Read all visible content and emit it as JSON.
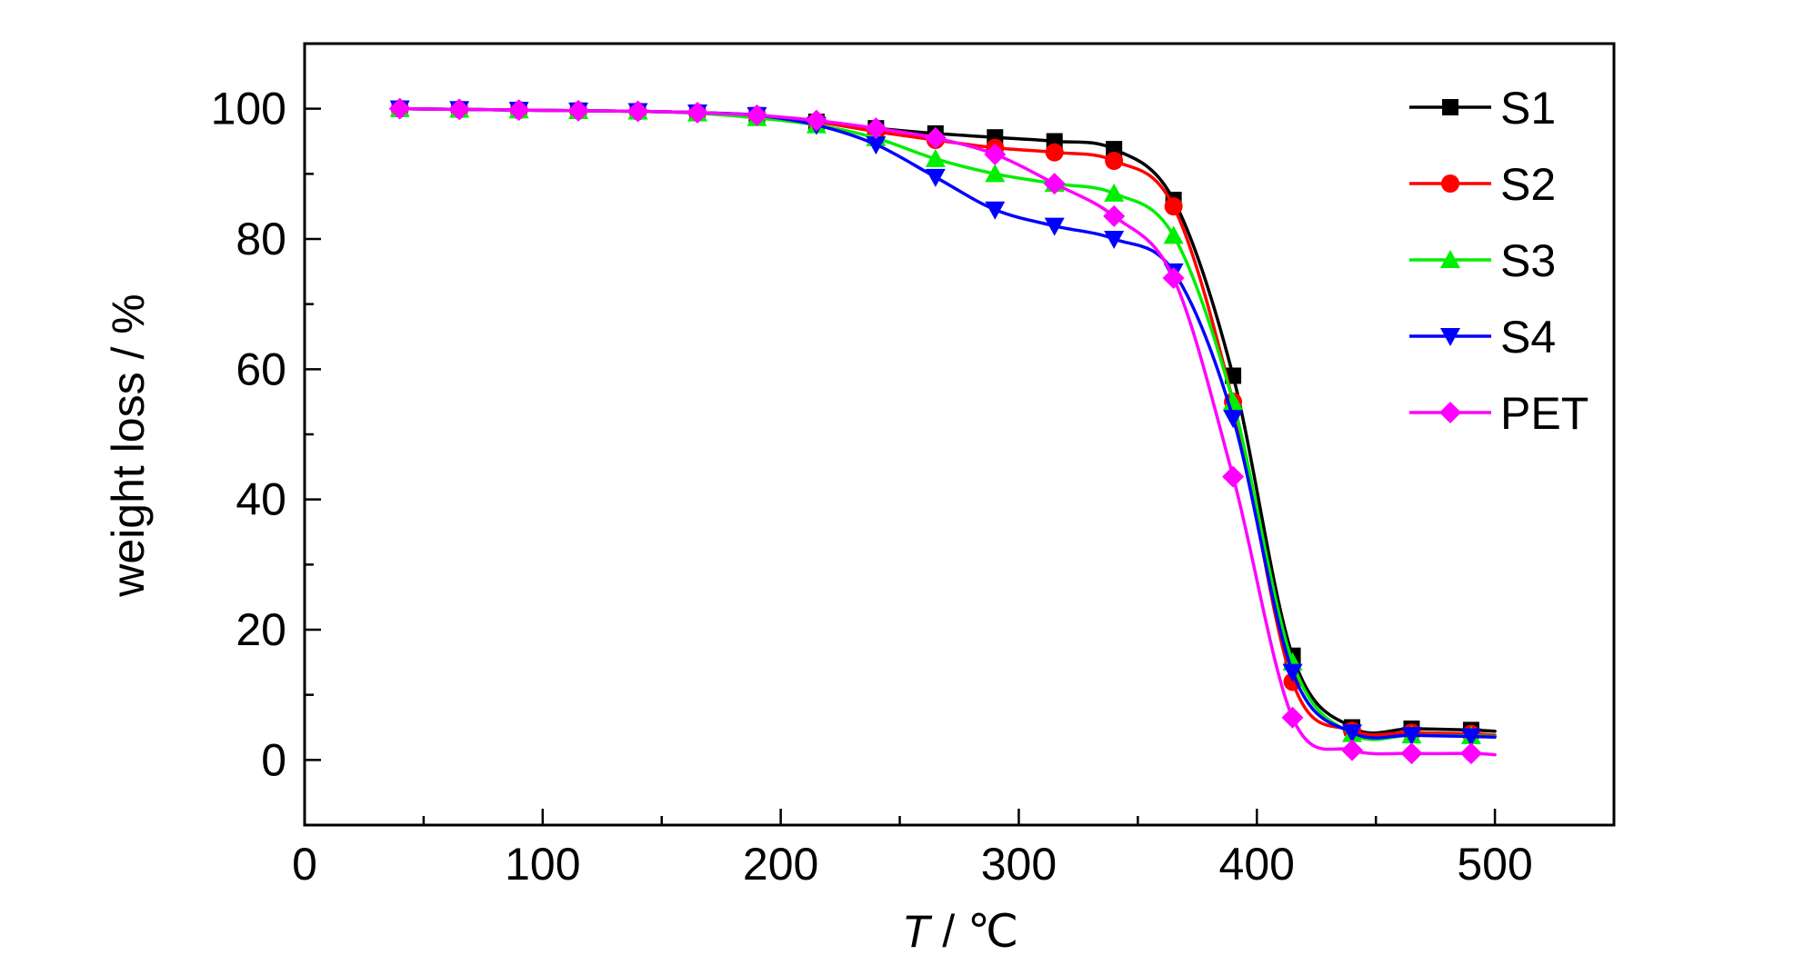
{
  "chart_data": {
    "type": "line",
    "xlabel_var": "T",
    "xlabel_unit": " / ℃",
    "ylabel": "weight loss / %",
    "xlim": [
      0,
      550
    ],
    "ylim": [
      -10,
      110
    ],
    "xticks": [
      0,
      100,
      200,
      300,
      400,
      500
    ],
    "xminor": [
      50,
      150,
      250,
      350,
      450
    ],
    "yticks": [
      0,
      20,
      40,
      60,
      80,
      100
    ],
    "yminor": [
      10,
      30,
      50,
      70,
      90
    ],
    "legend_position": "top-right",
    "x": [
      40,
      65,
      90,
      115,
      140,
      165,
      190,
      215,
      240,
      265,
      290,
      315,
      340,
      365,
      390,
      415,
      440,
      465,
      490
    ],
    "x_end": 500,
    "series": [
      {
        "name": "S1",
        "color": "#000000",
        "marker": "square",
        "values": [
          100,
          99.9,
          99.8,
          99.7,
          99.6,
          99.4,
          99,
          98,
          97,
          96.2,
          95.6,
          95,
          93.8,
          86,
          59,
          16,
          5,
          4.8,
          4.6
        ],
        "end_value": 4.4
      },
      {
        "name": "S2",
        "color": "#ff0000",
        "marker": "circle",
        "values": [
          100,
          99.9,
          99.8,
          99.7,
          99.6,
          99.4,
          99,
          98,
          96.5,
          95.2,
          94,
          93.3,
          92,
          85,
          55,
          12,
          4.5,
          4.2,
          4
        ],
        "end_value": 3.8
      },
      {
        "name": "S3",
        "color": "#00ee00",
        "marker": "triangle-up",
        "values": [
          100,
          99.9,
          99.8,
          99.7,
          99.6,
          99.3,
          98.6,
          97.5,
          95.5,
          92.3,
          90,
          88.5,
          87,
          80.5,
          55,
          15,
          4,
          3.8,
          3.7
        ],
        "end_value": 3.6
      },
      {
        "name": "S4",
        "color": "#0000ff",
        "marker": "triangle-down",
        "values": [
          100,
          99.9,
          99.8,
          99.7,
          99.6,
          99.4,
          99,
          97.5,
          94.5,
          89.5,
          84.5,
          82,
          80,
          75,
          52.5,
          13.5,
          4.2,
          3.8,
          3.6
        ],
        "end_value": 3.5
      },
      {
        "name": "PET",
        "color": "#ff00ff",
        "marker": "diamond",
        "values": [
          100,
          99.9,
          99.8,
          99.7,
          99.6,
          99.4,
          99,
          98.2,
          97,
          95.5,
          93,
          88.5,
          83.5,
          74,
          43.5,
          6.5,
          1.5,
          1,
          1
        ],
        "end_value": 0.8
      }
    ]
  }
}
